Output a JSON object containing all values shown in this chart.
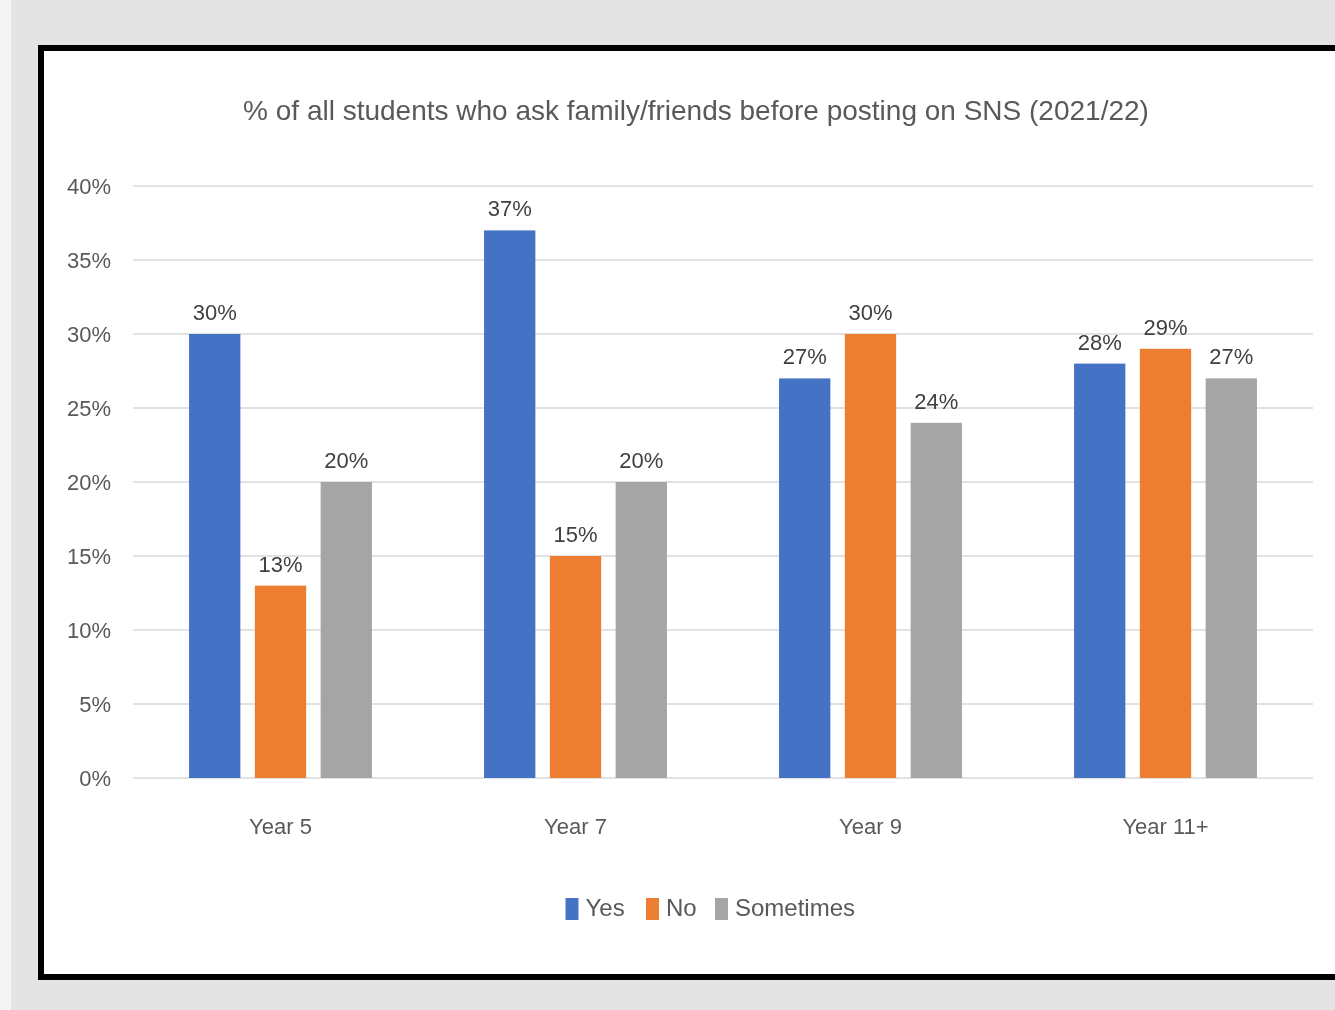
{
  "chart_data": {
    "type": "bar",
    "title": "% of all students who ask family/friends  before posting on SNS (2021/22)",
    "categories": [
      "Year 5",
      "Year 7",
      "Year 9",
      "Year 11+"
    ],
    "series": [
      {
        "name": "Yes",
        "color": "#4472c4",
        "values": [
          30,
          37,
          27,
          28
        ],
        "value_labels": [
          "30%",
          "37%",
          "27%",
          "28%"
        ]
      },
      {
        "name": "No",
        "color": "#ed7d31",
        "values": [
          13,
          15,
          30,
          29
        ],
        "value_labels": [
          "13%",
          "15%",
          "30%",
          "29%"
        ]
      },
      {
        "name": "Sometimes",
        "color": "#a5a5a5",
        "values": [
          20,
          20,
          24,
          27
        ],
        "value_labels": [
          "20%",
          "20%",
          "24%",
          "27%"
        ]
      }
    ],
    "ylim": [
      0,
      40
    ],
    "yticks": [
      {
        "value": 0,
        "label": "0%"
      },
      {
        "value": 5,
        "label": "5%"
      },
      {
        "value": 10,
        "label": "10%"
      },
      {
        "value": 15,
        "label": "15%"
      },
      {
        "value": 20,
        "label": "20%"
      },
      {
        "value": 25,
        "label": "25%"
      },
      {
        "value": 30,
        "label": "30%"
      },
      {
        "value": 35,
        "label": "35%"
      },
      {
        "value": 40,
        "label": "40%"
      }
    ],
    "grid": "y",
    "legend": "bottom"
  }
}
